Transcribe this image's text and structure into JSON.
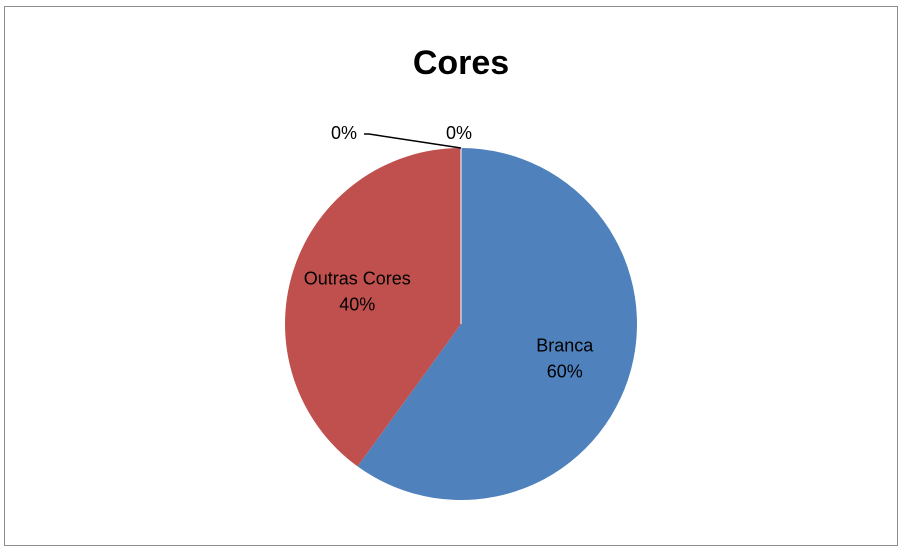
{
  "chart_data": {
    "type": "pie",
    "title": "Cores",
    "slices": [
      {
        "label": "Branca",
        "value": 60,
        "display": "60%",
        "color": "#4F81BD"
      },
      {
        "label": "Outras Cores",
        "value": 40,
        "display": "40%",
        "color": "#C0504D"
      },
      {
        "label": "",
        "value": 0,
        "display": "0%",
        "color": "#9BBB59"
      },
      {
        "label": "",
        "value": 0,
        "display": "0%",
        "color": "#8064A2"
      }
    ],
    "legend": "none"
  }
}
